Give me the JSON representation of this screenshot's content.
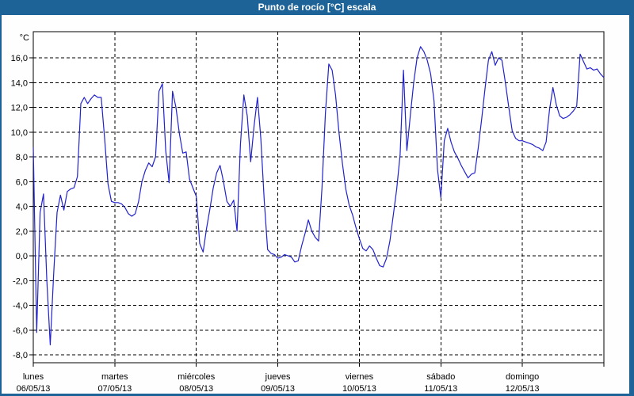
{
  "window": {
    "title": "Punto de rocío [°C] escala"
  },
  "colors": {
    "frame_blue": "#1E6398",
    "series_blue": "#2222CC",
    "plot_border": "#000000",
    "grid": "#000000",
    "panel_background": "#FDFEFD",
    "plot_background": "#FFFFFF",
    "title_text": "#FFFFFF",
    "label_text": "#000000"
  },
  "chart_data": {
    "type": "line",
    "title": "Punto de rocío [°C] escala",
    "ylabel": "°C",
    "legend": "none",
    "grid_style": "dashed",
    "y_axis": {
      "unit_label": "°C",
      "tick_values": [
        16,
        14,
        12,
        10,
        8,
        6,
        4,
        2,
        0,
        -2,
        -4,
        -6,
        -8
      ],
      "tick_labels": [
        "16,0",
        "14,0",
        "12,0",
        "10,0",
        "8,0",
        "6,0",
        "4,0",
        "2,0",
        "0,0",
        "-2,0",
        "-4,0",
        "-6,0",
        "-8,0"
      ],
      "axis_min": -8.6,
      "axis_max": 18.1
    },
    "x_axis": {
      "days": [
        {
          "name": "lunes",
          "date": "06/05/13"
        },
        {
          "name": "martes",
          "date": "07/05/13"
        },
        {
          "name": "miércoles",
          "date": "08/05/13"
        },
        {
          "name": "jueves",
          "date": "09/05/13"
        },
        {
          "name": "viernes",
          "date": "10/05/13"
        },
        {
          "name": "sábado",
          "date": "11/05/13"
        },
        {
          "name": "domingo",
          "date": "12/05/13"
        }
      ],
      "hours_per_day": 24
    },
    "series": [
      {
        "name": "Punto de rocío [°C]",
        "color": "#2222CC",
        "sampling": "hourly",
        "values": [
          8.8,
          -6.2,
          3.5,
          5.0,
          -2.0,
          -7.2,
          -1.5,
          3.5,
          4.9,
          3.7,
          5.2,
          5.4,
          5.5,
          6.4,
          12.3,
          12.8,
          12.3,
          12.7,
          13.0,
          12.8,
          12.8,
          9.5,
          5.8,
          4.4,
          4.3,
          4.3,
          4.2,
          3.9,
          3.4,
          3.2,
          3.4,
          4.4,
          6.0,
          6.9,
          7.5,
          7.2,
          8.0,
          13.3,
          13.9,
          8.5,
          5.9,
          13.3,
          12.0,
          9.9,
          8.3,
          8.4,
          6.2,
          5.5,
          4.8,
          1.0,
          0.3,
          2.2,
          3.8,
          5.5,
          6.7,
          7.3,
          6.0,
          4.4,
          4.0,
          4.5,
          2.0,
          9.0,
          13.0,
          11.3,
          7.6,
          10.5,
          12.8,
          9.5,
          4.5,
          0.5,
          0.2,
          0.1,
          -0.2,
          -0.1,
          0.1,
          0.0,
          -0.1,
          -0.5,
          -0.4,
          0.8,
          1.8,
          2.9,
          2.0,
          1.5,
          1.2,
          5.5,
          11.5,
          15.5,
          15.0,
          13.0,
          10.0,
          7.5,
          5.4,
          4.1,
          3.3,
          2.3,
          1.4,
          0.6,
          0.4,
          0.8,
          0.5,
          -0.2,
          -0.8,
          -0.9,
          -0.2,
          1.2,
          3.3,
          5.4,
          8.2,
          15.0,
          8.5,
          11.3,
          14.0,
          16.0,
          16.9,
          16.5,
          15.8,
          14.7,
          12.5,
          7.0,
          4.7,
          9.3,
          10.3,
          9.2,
          8.4,
          7.9,
          7.3,
          6.8,
          6.3,
          6.6,
          6.7,
          8.7,
          11.0,
          13.5,
          15.8,
          16.5,
          15.4,
          16.0,
          15.8,
          14.0,
          12.0,
          10.1,
          9.5,
          9.3,
          9.3,
          9.2,
          9.1,
          9.0,
          8.8,
          8.7,
          8.5,
          9.2,
          11.8,
          13.6,
          12.2,
          11.3,
          11.1,
          11.2,
          11.4,
          11.7,
          12.1,
          16.3,
          15.7,
          15.1,
          15.2,
          15.0,
          15.1,
          14.7,
          14.4
        ]
      }
    ]
  }
}
